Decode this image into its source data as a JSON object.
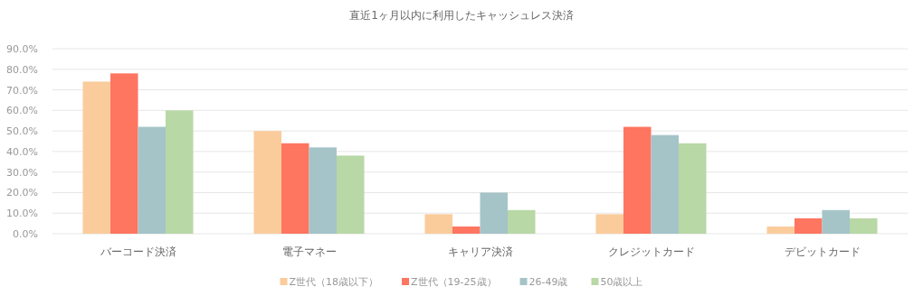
{
  "chart_data": {
    "type": "bar",
    "title": "直近1ヶ月以内に利用したキャッシュレス決済",
    "categories": [
      "バーコード決済",
      "電子マネー",
      "キャリア決済",
      "クレジットカード",
      "デビットカード"
    ],
    "series": [
      {
        "name": "Z世代（18歳以下）",
        "color": "#facc9c",
        "values": [
          74,
          50,
          9.5,
          9.5,
          3.5
        ]
      },
      {
        "name": "Z世代（19-25歳）",
        "color": "#fe7560",
        "values": [
          78,
          44,
          3.5,
          52,
          7.5
        ]
      },
      {
        "name": "26-49歳",
        "color": "#a5c4c8",
        "values": [
          52,
          42,
          20,
          48,
          11.5
        ]
      },
      {
        "name": "50歳以上",
        "color": "#b8d8a6",
        "values": [
          60,
          38,
          11.5,
          44,
          7.5
        ]
      }
    ],
    "ylim": [
      0,
      90
    ],
    "yticks": [
      {
        "value": 0,
        "label": "0.0%"
      },
      {
        "value": 10,
        "label": "10.0%"
      },
      {
        "value": 20,
        "label": "20.0%"
      },
      {
        "value": 30,
        "label": "30.0%"
      },
      {
        "value": 40,
        "label": "40.0%"
      },
      {
        "value": 50,
        "label": "50.0%"
      },
      {
        "value": 60,
        "label": "60.0%"
      },
      {
        "value": 70,
        "label": "70.0%"
      },
      {
        "value": 80,
        "label": "80.0%"
      },
      {
        "value": 90,
        "label": "90.0%"
      }
    ],
    "grid": "y",
    "legend": "bottom"
  }
}
